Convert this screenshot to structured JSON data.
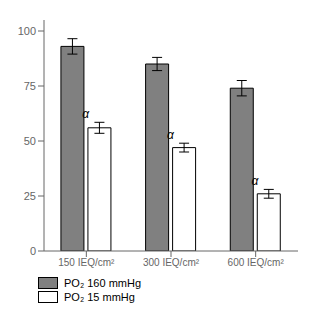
{
  "chart_data": {
    "type": "bar",
    "categories": [
      "150 IEQ/cm²",
      "300 IEQ/cm²",
      "600 IEQ/cm²"
    ],
    "series": [
      {
        "name": "PO₂ 160 mmHg",
        "color": "gray",
        "values": [
          93,
          85,
          74
        ],
        "errors": [
          3.5,
          3.0,
          3.5
        ]
      },
      {
        "name": "PO₂ 15 mmHg",
        "color": "white",
        "values": [
          56,
          47,
          26
        ],
        "errors": [
          2.5,
          2.0,
          2.0
        ]
      }
    ],
    "ylim": [
      0,
      105
    ],
    "yticks": [
      0,
      25,
      50,
      75,
      100
    ],
    "grid": false,
    "legend": "bottom",
    "annotations": [
      {
        "text": "α",
        "series": "PO₂ 15 mmHg",
        "category": "150 IEQ/cm²"
      },
      {
        "text": "α",
        "series": "PO₂ 15 mmHg",
        "category": "300 IEQ/cm²"
      },
      {
        "text": "α",
        "series": "PO₂ 15 mmHg",
        "category": "600 IEQ/cm²"
      }
    ]
  }
}
